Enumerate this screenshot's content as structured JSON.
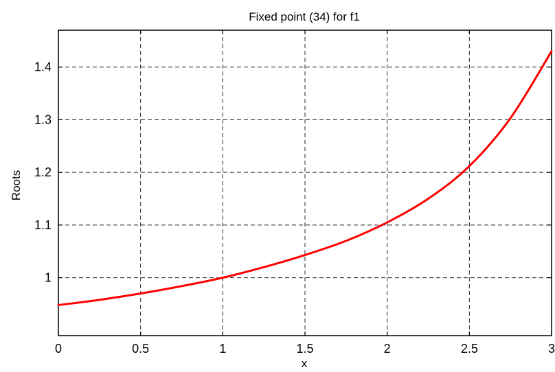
{
  "chart_data": {
    "type": "line",
    "title": "Fixed point (34) for f1",
    "xlabel": "x",
    "ylabel": "Roots",
    "xlim": [
      0,
      3
    ],
    "ylim": [
      0.89,
      1.47
    ],
    "xticks": [
      0,
      0.5,
      1,
      1.5,
      2,
      2.5,
      3
    ],
    "xtick_labels": [
      "0",
      "0.5",
      "1",
      "1.5",
      "2",
      "2.5",
      "3"
    ],
    "yticks": [
      1.0,
      1.1,
      1.2,
      1.3,
      1.4
    ],
    "ytick_labels": [
      "1",
      "1.1",
      "1.2",
      "1.3",
      "1.4"
    ],
    "grid": true,
    "series": [
      {
        "color": "#ff0000",
        "x": [
          0,
          0.25,
          0.5,
          0.75,
          1.0,
          1.25,
          1.5,
          1.75,
          2.0,
          2.25,
          2.5,
          2.75,
          3.0
        ],
        "y": [
          0.948,
          0.958,
          0.97,
          0.984,
          1.0,
          1.02,
          1.043,
          1.07,
          1.105,
          1.15,
          1.212,
          1.303,
          1.43
        ]
      }
    ]
  }
}
